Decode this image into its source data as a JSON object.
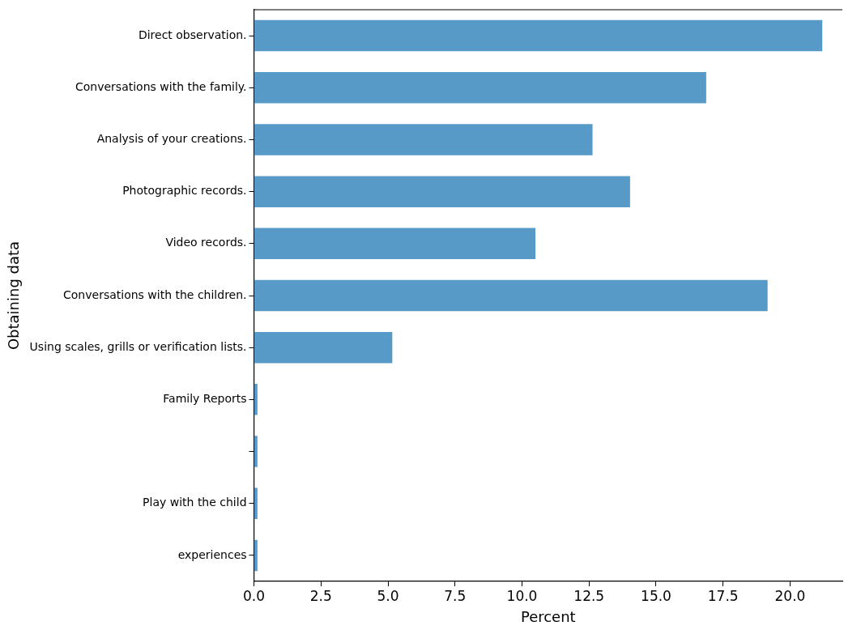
{
  "chart_data": {
    "type": "bar",
    "orientation": "horizontal",
    "xlabel": "Percent",
    "ylabel": "Obtaining data",
    "categories": [
      "Direct observation.",
      "Conversations with the family.",
      "Analysis of your creations.",
      "Photographic records.",
      "Video records.",
      "Conversations with the children.",
      "Using scales, grills or verification lists.",
      "Family Reports",
      null,
      "Play with the child",
      "experiences"
    ],
    "values": [
      21.2,
      16.87,
      12.63,
      14.03,
      10.5,
      19.16,
      5.16,
      0.13,
      0.13,
      0.13,
      0.13
    ],
    "color": "#5799c7",
    "xlim": [
      0,
      21.95
    ],
    "xticks": [
      {
        "value": 0,
        "label": "0.0"
      },
      {
        "value": 2.5,
        "label": "2.5"
      },
      {
        "value": 5,
        "label": "5.0"
      },
      {
        "value": 7.5,
        "label": "7.5"
      },
      {
        "value": 10,
        "label": "10.0"
      },
      {
        "value": 12.5,
        "label": "12.5"
      },
      {
        "value": 15,
        "label": "15.0"
      },
      {
        "value": 17.5,
        "label": "17.5"
      },
      {
        "value": 20,
        "label": "20.0"
      }
    ],
    "grid": false,
    "legend": false
  }
}
